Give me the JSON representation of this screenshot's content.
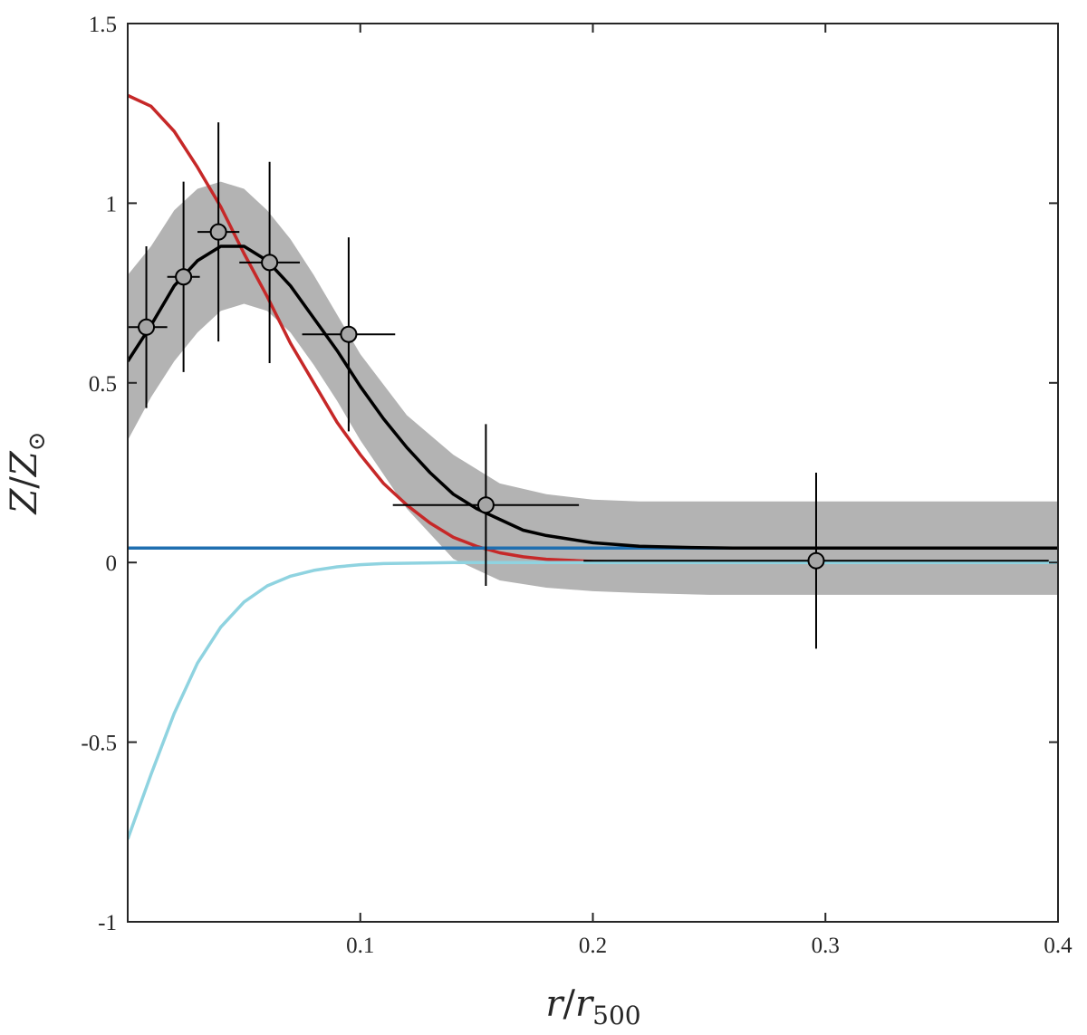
{
  "chart_data": {
    "type": "line",
    "xlabel": {
      "main": "r",
      "sep": "/",
      "sub_base": "r",
      "sub": "500"
    },
    "ylabel": {
      "main": "Z",
      "sep": "/",
      "sub_base": "Z",
      "sub": "⊙"
    },
    "xlim": [
      0,
      0.4
    ],
    "ylim": [
      -1,
      1.5
    ],
    "xticks": [
      {
        "value": 0.1,
        "label": "0.1"
      },
      {
        "value": 0.2,
        "label": "0.2"
      },
      {
        "value": 0.3,
        "label": "0.3"
      },
      {
        "value": 0.4,
        "label": "0.4"
      }
    ],
    "yticks": [
      {
        "value": -1,
        "label": "-1"
      },
      {
        "value": -0.5,
        "label": "-0.5"
      },
      {
        "value": 0,
        "label": "0"
      },
      {
        "value": 0.5,
        "label": "0.5"
      },
      {
        "value": 1,
        "label": "1"
      },
      {
        "value": 1.5,
        "label": "1.5"
      }
    ],
    "grid": false,
    "legend": "none",
    "band": {
      "color": "#b3b3b3",
      "x": [
        0,
        0.01,
        0.02,
        0.03,
        0.04,
        0.05,
        0.06,
        0.07,
        0.08,
        0.09,
        0.1,
        0.12,
        0.14,
        0.16,
        0.18,
        0.2,
        0.22,
        0.25,
        0.3,
        0.35,
        0.4
      ],
      "lower": [
        0.34,
        0.46,
        0.56,
        0.64,
        0.7,
        0.72,
        0.7,
        0.64,
        0.55,
        0.45,
        0.34,
        0.15,
        0.01,
        -0.05,
        -0.07,
        -0.08,
        -0.085,
        -0.09,
        -0.09,
        -0.09,
        -0.09
      ],
      "upper": [
        0.8,
        0.88,
        0.98,
        1.04,
        1.06,
        1.04,
        0.98,
        0.9,
        0.8,
        0.69,
        0.58,
        0.41,
        0.3,
        0.22,
        0.19,
        0.175,
        0.17,
        0.17,
        0.17,
        0.17,
        0.17
      ]
    },
    "series": [
      {
        "color": "#c62828",
        "x": [
          0,
          0.01,
          0.02,
          0.03,
          0.04,
          0.05,
          0.06,
          0.07,
          0.08,
          0.09,
          0.1,
          0.11,
          0.12,
          0.13,
          0.14,
          0.15,
          0.16,
          0.17,
          0.18,
          0.2,
          0.22,
          0.24,
          0.26,
          0.3,
          0.35,
          0.4
        ],
        "y": [
          1.3,
          1.27,
          1.2,
          1.1,
          0.99,
          0.86,
          0.74,
          0.61,
          0.5,
          0.39,
          0.3,
          0.22,
          0.16,
          0.11,
          0.07,
          0.045,
          0.027,
          0.016,
          0.009,
          0.003,
          0.001,
          0,
          0,
          0,
          0,
          0
        ]
      },
      {
        "color": "#8fd3e0",
        "x": [
          0,
          0.01,
          0.02,
          0.03,
          0.04,
          0.05,
          0.06,
          0.07,
          0.08,
          0.09,
          0.1,
          0.11,
          0.12,
          0.14,
          0.16,
          0.2,
          0.3,
          0.4
        ],
        "y": [
          -0.77,
          -0.59,
          -0.42,
          -0.28,
          -0.18,
          -0.11,
          -0.065,
          -0.038,
          -0.022,
          -0.012,
          -0.006,
          -0.003,
          -0.002,
          0,
          0,
          0,
          0,
          0
        ]
      },
      {
        "color": "#1f6fb0",
        "x": [
          0,
          0.4
        ],
        "y": [
          0.04,
          0.04
        ]
      },
      {
        "color": "#000000",
        "x": [
          0,
          0.01,
          0.02,
          0.03,
          0.04,
          0.05,
          0.06,
          0.07,
          0.08,
          0.09,
          0.1,
          0.11,
          0.12,
          0.13,
          0.14,
          0.15,
          0.16,
          0.17,
          0.18,
          0.19,
          0.2,
          0.22,
          0.24,
          0.26,
          0.3,
          0.35,
          0.4
        ],
        "y": [
          0.56,
          0.66,
          0.77,
          0.84,
          0.88,
          0.88,
          0.84,
          0.77,
          0.68,
          0.59,
          0.49,
          0.4,
          0.32,
          0.25,
          0.19,
          0.15,
          0.12,
          0.09,
          0.075,
          0.065,
          0.055,
          0.045,
          0.042,
          0.04,
          0.04,
          0.04,
          0.04
        ]
      }
    ],
    "points": {
      "color": "#000000",
      "marker_fill": "#a6a6a6",
      "x": [
        0.008,
        0.024,
        0.039,
        0.061,
        0.095,
        0.154,
        0.296
      ],
      "y": [
        0.655,
        0.795,
        0.92,
        0.835,
        0.635,
        0.16,
        0.005
      ],
      "xerr": [
        0.009,
        0.007,
        0.009,
        0.013,
        0.02,
        0.04,
        0.1
      ],
      "yerr": [
        0.225,
        0.265,
        0.305,
        0.28,
        0.27,
        0.225,
        0.245
      ]
    }
  }
}
